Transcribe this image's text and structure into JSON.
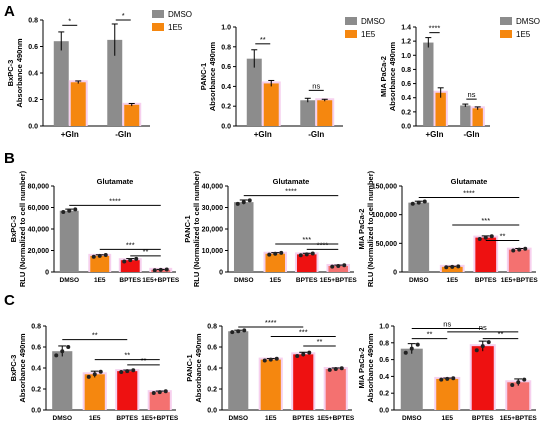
{
  "colors": {
    "gray": "#8c8c8c",
    "orange": "#f5870f",
    "red": "#ee1111",
    "salmon": "#f47170",
    "halo": "#f6d0ee",
    "axis": "#000000"
  },
  "panels": {
    "a": "A",
    "b": "B",
    "c": "C"
  },
  "chart_data": [
    {
      "id": "A1",
      "type": "bar",
      "ylabel": "BxPC-3",
      "ylabel2": "Absorbance 490nm",
      "ylim": [
        0,
        0.8
      ],
      "yticks": [
        "0.0",
        "0.2",
        "0.4",
        "0.6",
        "0.8"
      ],
      "categories": [
        "+Gln",
        "-Gln"
      ],
      "series": [
        {
          "name": "DMSO",
          "color": "gray",
          "values": [
            0.64,
            0.65
          ],
          "err": [
            0.07,
            0.12
          ]
        },
        {
          "name": "1E5",
          "color": "orange",
          "values": [
            0.33,
            0.16
          ],
          "err": [
            0.01,
            0.01
          ]
        }
      ],
      "legend": [
        "DMSO",
        "1E5"
      ],
      "sig": [
        "*",
        "*"
      ]
    },
    {
      "id": "A2",
      "type": "bar",
      "ylabel": "PANC-1",
      "ylabel2": "Absorbance 490nm",
      "ylim": [
        0,
        1.0
      ],
      "yticks": [
        "0.0",
        "0.2",
        "0.4",
        "0.6",
        "0.8",
        "1.0"
      ],
      "categories": [
        "+Gln",
        "-Gln"
      ],
      "series": [
        {
          "name": "DMSO",
          "color": "gray",
          "values": [
            0.68,
            0.26
          ],
          "err": [
            0.09,
            0.02
          ]
        },
        {
          "name": "1E5",
          "color": "orange",
          "values": [
            0.43,
            0.26
          ],
          "err": [
            0.03,
            0.01
          ]
        }
      ],
      "legend": [
        "DMSO",
        "1E5"
      ],
      "sig": [
        "**",
        "ns"
      ]
    },
    {
      "id": "A3",
      "type": "bar",
      "ylabel": "MIA PaCa-2",
      "ylabel2": "Absorbance 490nm",
      "ylim": [
        0,
        1.4
      ],
      "yticks": [
        "0.0",
        "0.2",
        "0.4",
        "0.6",
        "0.8",
        "1.0",
        "1.2",
        "1.4"
      ],
      "categories": [
        "+Gln",
        "-Gln"
      ],
      "series": [
        {
          "name": "DMSO",
          "color": "gray",
          "values": [
            1.18,
            0.29
          ],
          "err": [
            0.07,
            0.02
          ]
        },
        {
          "name": "1E5",
          "color": "orange",
          "values": [
            0.47,
            0.25
          ],
          "err": [
            0.07,
            0.02
          ]
        }
      ],
      "legend": [
        "DMSO",
        "1E5"
      ],
      "sig": [
        "****",
        "ns"
      ]
    },
    {
      "id": "B1",
      "type": "bar",
      "title": "Glutamate",
      "ylabel": "BxPC-3",
      "ylabel2": "RLU (Normalized to cell number)",
      "ylim": [
        0,
        80000
      ],
      "yticks": [
        "0",
        "20,000",
        "40,000",
        "60,000",
        "80,000"
      ],
      "categories": [
        "DMSO",
        "1E5",
        "BPTES",
        "1E5+BPTES"
      ],
      "values": [
        57000,
        15000,
        11000,
        2000
      ],
      "err": [
        1500,
        1000,
        1500,
        400
      ],
      "colors": [
        "gray",
        "orange",
        "red",
        "salmon"
      ],
      "sig": [
        "****",
        "***",
        "**"
      ]
    },
    {
      "id": "B2",
      "type": "bar",
      "title": "Glutamate",
      "ylabel": "PANC-1",
      "ylabel2": "RLU (Normalized to cell number)",
      "ylim": [
        0,
        40000
      ],
      "yticks": [
        "0",
        "10,000",
        "20,000",
        "30,000",
        "40,000"
      ],
      "categories": [
        "DMSO",
        "1E5",
        "BPTES",
        "1E5+BPTES"
      ],
      "values": [
        32500,
        8500,
        8200,
        2800
      ],
      "err": [
        1000,
        500,
        500,
        400
      ],
      "colors": [
        "gray",
        "orange",
        "red",
        "salmon"
      ],
      "sig": [
        "****",
        "***",
        "****"
      ]
    },
    {
      "id": "B3",
      "type": "bar",
      "title": "Glutamate",
      "ylabel": "MIA PaCa-2",
      "ylabel2": "RLU (Normalized to cell number)",
      "ylim": [
        0,
        150000
      ],
      "yticks": [
        "0",
        "50,000",
        "100,000",
        "150,000"
      ],
      "categories": [
        "DMSO",
        "1E5",
        "BPTES",
        "1E5+BPTES"
      ],
      "values": [
        121000,
        9000,
        60000,
        39000
      ],
      "err": [
        2500,
        1000,
        3000,
        2000
      ],
      "colors": [
        "gray",
        "orange",
        "red",
        "salmon"
      ],
      "sig": [
        "****",
        "***",
        "**"
      ]
    },
    {
      "id": "C1",
      "type": "bar",
      "ylabel": "BxPC-3",
      "ylabel2": "Absorbance 490nm",
      "ylim": [
        0,
        0.8
      ],
      "yticks": [
        "0.0",
        "0.2",
        "0.4",
        "0.6",
        "0.8"
      ],
      "categories": [
        "DMSO",
        "1E5",
        "BPTES",
        "1E5+BPTES"
      ],
      "values": [
        0.56,
        0.34,
        0.37,
        0.17
      ],
      "err": [
        0.05,
        0.03,
        0.01,
        0.01
      ],
      "colors": [
        "gray",
        "orange",
        "red",
        "salmon"
      ],
      "sig": [
        "**",
        "**",
        "**"
      ]
    },
    {
      "id": "C2",
      "type": "bar",
      "ylabel": "PANC-1",
      "ylabel2": "Absorbance 490nm",
      "ylim": [
        0,
        0.8
      ],
      "yticks": [
        "0.0",
        "0.2",
        "0.4",
        "0.6",
        "0.8"
      ],
      "categories": [
        "DMSO",
        "1E5",
        "BPTES",
        "1E5+BPTES"
      ],
      "values": [
        0.75,
        0.48,
        0.53,
        0.39
      ],
      "err": [
        0.01,
        0.01,
        0.02,
        0.01
      ],
      "colors": [
        "gray",
        "orange",
        "red",
        "salmon"
      ],
      "sig": [
        "****",
        "***",
        "**"
      ]
    },
    {
      "id": "C3",
      "type": "bar",
      "ylabel": "MIA PaCa-2",
      "ylabel2": "Absorbance 490nm",
      "ylim": [
        0,
        1.0
      ],
      "yticks": [
        "0.0",
        "0.2",
        "0.4",
        "0.6",
        "0.8",
        "1.0"
      ],
      "categories": [
        "DMSO",
        "1E5",
        "BPTES",
        "1E5+BPTES"
      ],
      "values": [
        0.73,
        0.37,
        0.76,
        0.33
      ],
      "err": [
        0.06,
        0.01,
        0.06,
        0.04
      ],
      "colors": [
        "gray",
        "orange",
        "red",
        "salmon"
      ],
      "sig": [
        "ns",
        "ns",
        "**",
        "**"
      ]
    }
  ]
}
